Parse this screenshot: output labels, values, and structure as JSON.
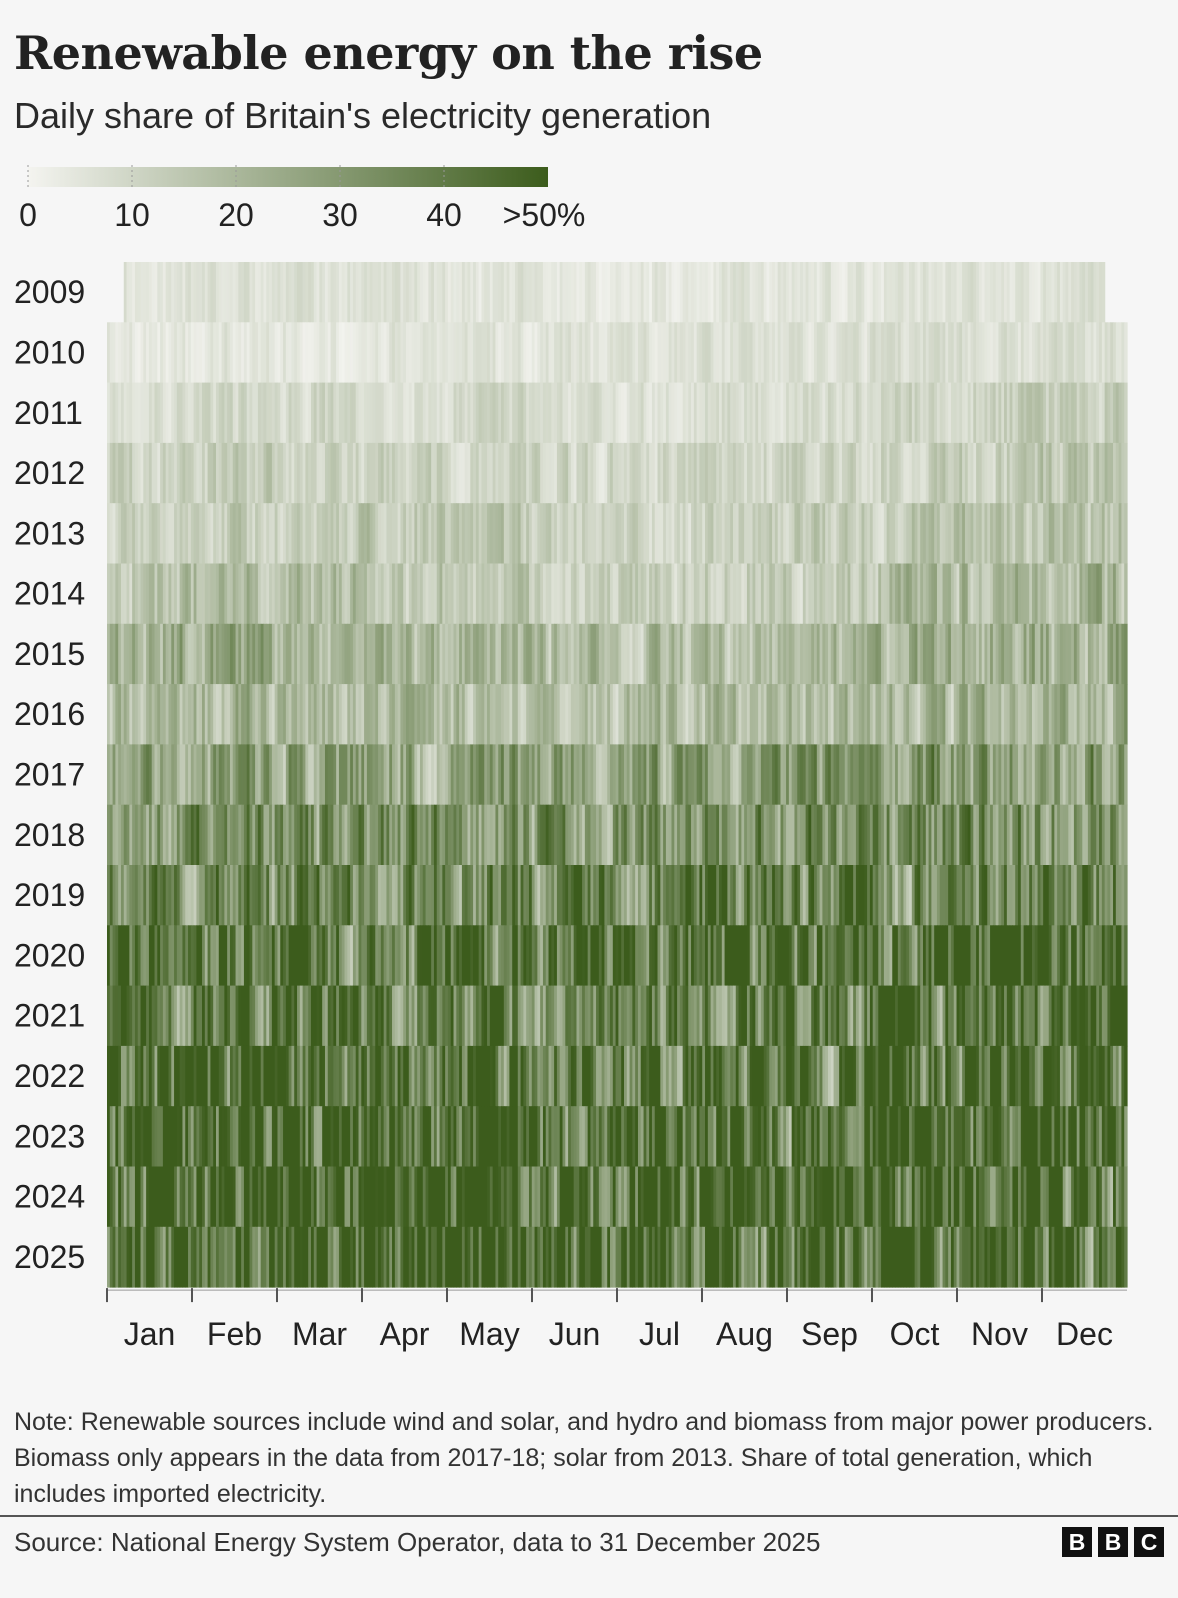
{
  "title": "Renewable energy on the rise",
  "subtitle": "Daily share of Britain's electricity generation",
  "legend": {
    "ticks": [
      "0",
      "10",
      "20",
      "30",
      "40",
      ">50%"
    ],
    "min": 0,
    "max": 50,
    "color_low": "#f4f4f0",
    "color_high": "#3c5c1c"
  },
  "chart_data": {
    "type": "heatmap",
    "title": "Renewable energy on the rise",
    "subtitle": "Daily share of Britain's electricity generation",
    "y_categories": [
      "2009",
      "2010",
      "2011",
      "2012",
      "2013",
      "2014",
      "2015",
      "2016",
      "2017",
      "2018",
      "2019",
      "2020",
      "2021",
      "2022",
      "2023",
      "2024",
      "2025"
    ],
    "x_categories": [
      "Jan",
      "Feb",
      "Mar",
      "Apr",
      "May",
      "Jun",
      "Jul",
      "Aug",
      "Sep",
      "Oct",
      "Nov",
      "Dec"
    ],
    "value_unit": "%",
    "value_range": [
      0,
      50
    ],
    "annual_mean_share": {
      "2009": 5,
      "2010": 6,
      "2011": 9,
      "2012": 11,
      "2013": 13,
      "2014": 16,
      "2015": 20,
      "2016": 19,
      "2017": 27,
      "2018": 32,
      "2019": 36,
      "2020": 43,
      "2021": 38,
      "2022": 43,
      "2023": 45,
      "2024": 47,
      "2025": 47
    },
    "monthly_mean_share": {
      "2009": [
        6,
        6,
        6,
        5,
        5,
        4,
        4,
        5,
        5,
        6,
        6,
        6
      ],
      "2010": [
        4,
        5,
        5,
        5,
        5,
        5,
        6,
        6,
        6,
        7,
        7,
        7
      ],
      "2011": [
        8,
        9,
        9,
        8,
        9,
        7,
        7,
        8,
        9,
        10,
        12,
        13
      ],
      "2012": [
        11,
        12,
        11,
        11,
        10,
        10,
        10,
        10,
        11,
        12,
        13,
        14
      ],
      "2013": [
        11,
        13,
        12,
        14,
        13,
        11,
        10,
        11,
        13,
        15,
        16,
        16
      ],
      "2014": [
        16,
        18,
        17,
        15,
        14,
        12,
        12,
        14,
        15,
        18,
        19,
        20
      ],
      "2015": [
        22,
        22,
        21,
        19,
        20,
        18,
        17,
        18,
        18,
        20,
        22,
        23
      ],
      "2016": [
        17,
        20,
        18,
        19,
        17,
        16,
        17,
        18,
        19,
        19,
        20,
        22
      ],
      "2017": [
        24,
        27,
        28,
        27,
        27,
        25,
        25,
        26,
        28,
        29,
        28,
        30
      ],
      "2018": [
        30,
        31,
        33,
        31,
        30,
        29,
        30,
        32,
        34,
        34,
        33,
        35
      ],
      "2019": [
        33,
        36,
        37,
        35,
        35,
        34,
        35,
        37,
        38,
        37,
        36,
        39
      ],
      "2020": [
        44,
        47,
        45,
        44,
        43,
        40,
        41,
        42,
        43,
        44,
        43,
        44
      ],
      "2021": [
        36,
        38,
        40,
        34,
        38,
        34,
        34,
        35,
        40,
        44,
        42,
        44
      ],
      "2022": [
        42,
        46,
        44,
        41,
        42,
        40,
        40,
        41,
        43,
        45,
        45,
        44
      ],
      "2023": [
        46,
        46,
        46,
        44,
        44,
        42,
        43,
        44,
        45,
        46,
        45,
        48
      ],
      "2024": [
        46,
        48,
        48,
        47,
        47,
        45,
        44,
        45,
        46,
        46,
        46,
        48
      ],
      "2025": [
        46,
        47,
        48,
        47,
        47,
        46,
        45,
        46,
        47,
        48,
        47,
        48
      ]
    }
  },
  "note": "Note: Renewable sources include wind and solar, and hydro and biomass from major power producers. Biomass only appears in the data from 2017-18; solar from 2013. Share of total generation, which includes imported electricity.",
  "source": "Source: National Energy System Operator, data to 31 December 2025",
  "logo": [
    "B",
    "B",
    "C"
  ]
}
